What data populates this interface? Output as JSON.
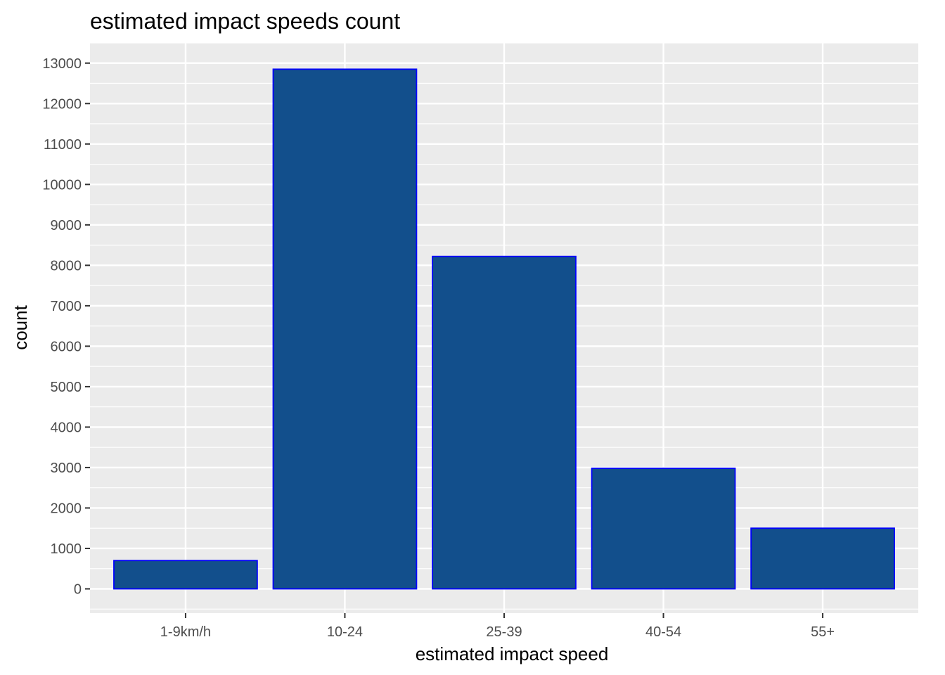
{
  "chart_data": {
    "type": "bar",
    "title": "estimated impact speeds count",
    "xlabel": "estimated impact speed",
    "ylabel": "count",
    "categories": [
      "1-9km/h",
      "10-24",
      "25-39",
      "40-54",
      "55+"
    ],
    "values": [
      700,
      12850,
      8220,
      2980,
      1500
    ],
    "ylim": [
      -600,
      13500
    ],
    "yticks": [
      0,
      1000,
      2000,
      3000,
      4000,
      5000,
      6000,
      7000,
      8000,
      9000,
      10000,
      11000,
      12000,
      13000
    ],
    "ytick_labels": [
      "0",
      "1000",
      "2000",
      "3000",
      "4000",
      "5000",
      "6000",
      "7000",
      "8000",
      "9000",
      "10000",
      "11000",
      "12000",
      "13000"
    ],
    "grid": true,
    "legend": "none",
    "colors": {
      "panel_background": "#ebebeb",
      "grid": "#ffffff",
      "bar_fill": "#124f8c",
      "bar_outline": "#0000ff",
      "tick_text": "#4d4d4d",
      "tick_mark": "#333333"
    }
  }
}
